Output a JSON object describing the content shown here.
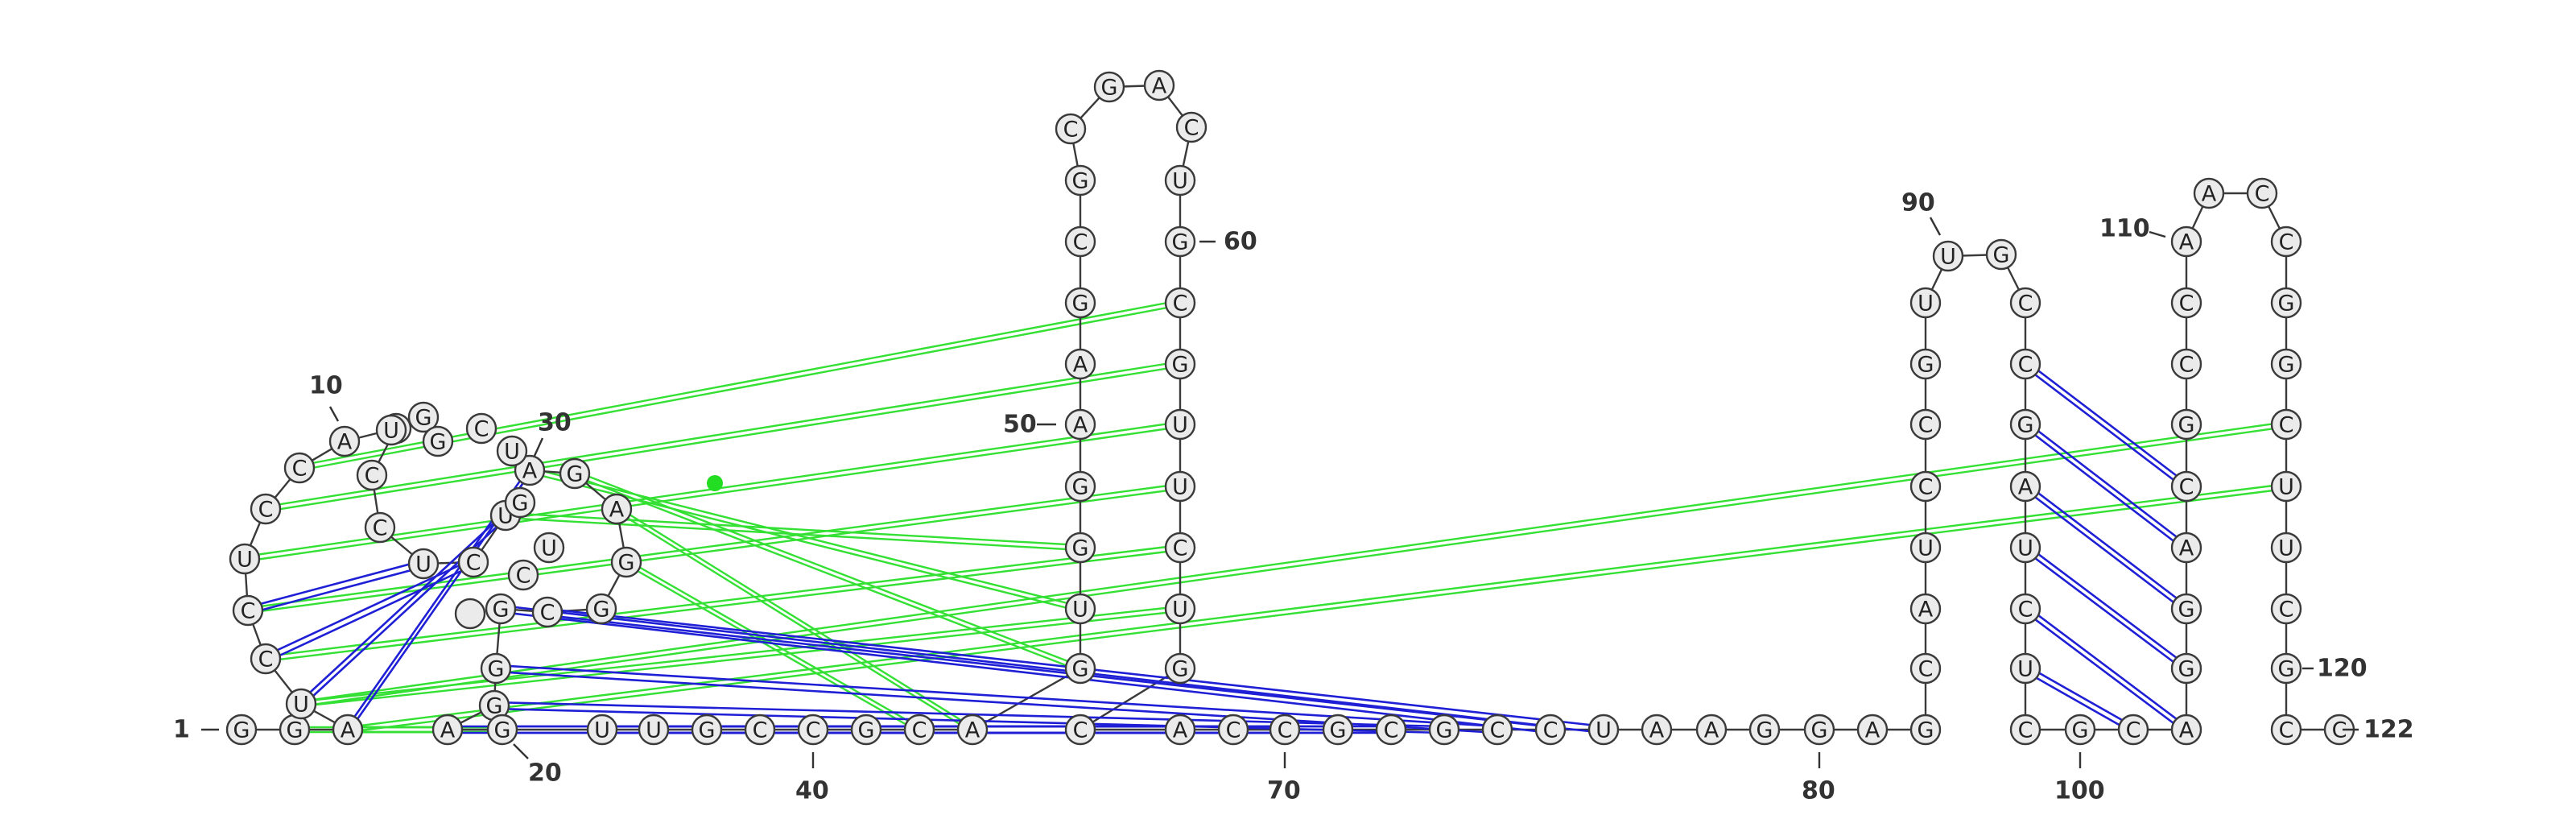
{
  "sequence": "GGAUCCUCCAUCCUCUAGAGGCGGGAGUUGCCGCAGUGGAAGCGCGACUGCGUUCUGCACCGCGCCUAAGGAGCAUCCGUUGCCGAUCUCGCAGGACGCCAACCGGCUUCGCCGUGCUGUC",
  "numbering": {
    "start": "1",
    "end": "122",
    "labels": [
      "10",
      "20",
      "30",
      "40",
      "50",
      "60",
      "70",
      "80",
      "90",
      "100",
      "110",
      "120"
    ]
  },
  "base_pairs": [
    [
      22,
      67
    ],
    [
      23,
      66
    ],
    [
      24,
      65
    ],
    [
      25,
      64
    ],
    [
      26,
      63
    ],
    [
      27,
      62
    ],
    [
      28,
      61
    ],
    [
      29,
      60
    ],
    [
      30,
      59
    ],
    [
      84,
      97
    ],
    [
      85,
      96
    ],
    [
      86,
      95
    ],
    [
      87,
      94
    ],
    [
      88,
      93
    ],
    [
      89,
      92
    ],
    [
      103,
      121
    ],
    [
      104,
      120
    ],
    [
      105,
      119
    ],
    [
      106,
      118
    ],
    [
      107,
      117
    ],
    [
      108,
      116
    ],
    [
      109,
      115
    ],
    [
      110,
      114
    ],
    [
      3,
      17
    ],
    [
      4,
      16
    ],
    [
      5,
      15
    ],
    [
      6,
      14
    ]
  ],
  "pseudoknot_links": [
    [
      2,
      27
    ],
    [
      3,
      27
    ],
    [
      3,
      26
    ],
    [
      4,
      56
    ],
    [
      5,
      55
    ],
    [
      6,
      54
    ],
    [
      7,
      53
    ],
    [
      8,
      52
    ],
    [
      9,
      51
    ],
    [
      16,
      38
    ],
    [
      17,
      37
    ],
    [
      18,
      36
    ],
    [
      19,
      35
    ],
    [
      20,
      34
    ],
    [
      3,
      108
    ],
    [
      4,
      107
    ]
  ],
  "colors": {
    "backbone": "#3a3a3a",
    "base_pair": "#1f1fd6",
    "pseudoknot": "#33e033",
    "node_fill": "#ebebeb"
  }
}
